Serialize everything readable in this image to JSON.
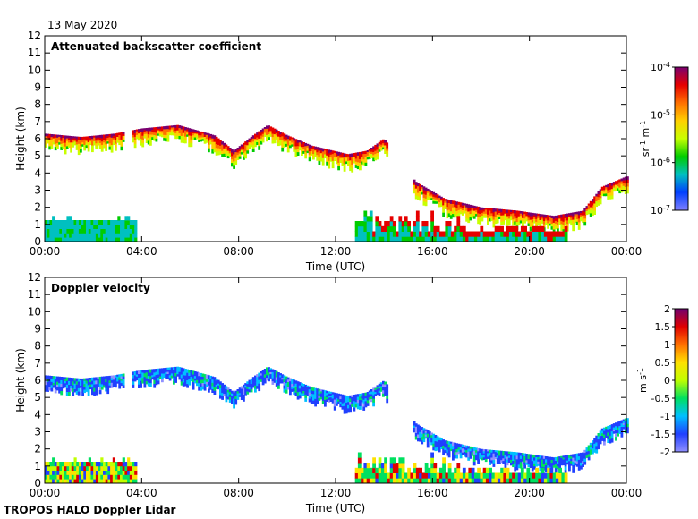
{
  "date": "13 May 2020",
  "footer": "TROPOS HALO Doppler Lidar",
  "colors": {
    "axis": "#000000",
    "background": "#ffffff",
    "rainbow": [
      "#ffffff",
      "#8080ff",
      "#0040ff",
      "#00c0c0",
      "#00cc00",
      "#c8ff00",
      "#ffd000",
      "#ff7000",
      "#e60000",
      "#7a0070"
    ],
    "velocity": [
      "#ffffff",
      "#9090ff",
      "#2040ff",
      "#00c0ff",
      "#00e060",
      "#c0ff00",
      "#ffe000",
      "#ff7000",
      "#e00000",
      "#700070"
    ]
  },
  "chart_data": [
    {
      "type": "heatmap",
      "title": "Attenuated backscatter coefficient",
      "xlabel": "Time (UTC)",
      "ylabel": "Height (km)",
      "xlim": [
        0,
        24
      ],
      "ylim": [
        0,
        12
      ],
      "x_tick_labels": [
        "00:00",
        "04:00",
        "08:00",
        "12:00",
        "16:00",
        "20:00",
        "00:00"
      ],
      "y_tick_labels": [
        "0",
        "1",
        "2",
        "3",
        "4",
        "5",
        "6",
        "7",
        "8",
        "9",
        "10",
        "11",
        "12"
      ],
      "colorbar": {
        "unit_base": "sr",
        "unit_exp1": "-1",
        "unit_mid": " m",
        "unit_exp2": "-1",
        "scale": "log",
        "range": [
          1e-07,
          0.0001
        ],
        "tick_base": "10",
        "tick_exps": [
          "-4",
          "-5",
          "-6",
          "-7"
        ]
      },
      "cloud_top_km": [
        {
          "t": 0.0,
          "h": 6.3
        },
        {
          "t": 1.5,
          "h": 6.1
        },
        {
          "t": 2.9,
          "h": 6.3
        },
        {
          "t": 4.0,
          "h": 6.6
        },
        {
          "t": 5.5,
          "h": 6.8
        },
        {
          "t": 7.0,
          "h": 6.2
        },
        {
          "t": 7.8,
          "h": 5.3
        },
        {
          "t": 8.6,
          "h": 6.2
        },
        {
          "t": 9.2,
          "h": 6.8
        },
        {
          "t": 10.0,
          "h": 6.2
        },
        {
          "t": 11.0,
          "h": 5.6
        },
        {
          "t": 12.5,
          "h": 5.1
        },
        {
          "t": 13.3,
          "h": 5.3
        },
        {
          "t": 14.0,
          "h": 6.0
        },
        {
          "t": 15.3,
          "h": 3.5
        },
        {
          "t": 16.5,
          "h": 2.5
        },
        {
          "t": 18.0,
          "h": 2.0
        },
        {
          "t": 19.5,
          "h": 1.8
        },
        {
          "t": 21.0,
          "h": 1.5
        },
        {
          "t": 22.2,
          "h": 1.8
        },
        {
          "t": 23.0,
          "h": 3.2
        },
        {
          "t": 24.0,
          "h": 3.8
        }
      ]
    },
    {
      "type": "heatmap",
      "title": "Doppler velocity",
      "xlabel": "Time (UTC)",
      "ylabel": "Height (km)",
      "xlim": [
        0,
        24
      ],
      "ylim": [
        0,
        12
      ],
      "x_tick_labels": [
        "00:00",
        "04:00",
        "08:00",
        "12:00",
        "16:00",
        "20:00",
        "00:00"
      ],
      "y_tick_labels": [
        "0",
        "1",
        "2",
        "3",
        "4",
        "5",
        "6",
        "7",
        "8",
        "9",
        "10",
        "11",
        "12"
      ],
      "colorbar": {
        "unit_base": "m s",
        "unit_exp1": "-1",
        "scale": "linear",
        "range": [
          -2,
          2
        ],
        "tick_labels": [
          "2",
          "1.5",
          "1",
          "0.5",
          "0",
          "-0.5",
          "-1",
          "-1.5",
          "-2"
        ]
      },
      "cloud_top_km": [
        {
          "t": 0.0,
          "h": 6.3
        },
        {
          "t": 1.5,
          "h": 6.1
        },
        {
          "t": 2.9,
          "h": 6.3
        },
        {
          "t": 4.0,
          "h": 6.6
        },
        {
          "t": 5.5,
          "h": 6.8
        },
        {
          "t": 7.0,
          "h": 6.2
        },
        {
          "t": 7.8,
          "h": 5.3
        },
        {
          "t": 8.6,
          "h": 6.2
        },
        {
          "t": 9.2,
          "h": 6.8
        },
        {
          "t": 10.0,
          "h": 6.2
        },
        {
          "t": 11.0,
          "h": 5.6
        },
        {
          "t": 12.5,
          "h": 5.1
        },
        {
          "t": 13.3,
          "h": 5.3
        },
        {
          "t": 14.0,
          "h": 6.0
        },
        {
          "t": 15.3,
          "h": 3.5
        },
        {
          "t": 16.5,
          "h": 2.5
        },
        {
          "t": 18.0,
          "h": 2.0
        },
        {
          "t": 19.5,
          "h": 1.8
        },
        {
          "t": 21.0,
          "h": 1.5
        },
        {
          "t": 22.2,
          "h": 1.8
        },
        {
          "t": 23.0,
          "h": 3.2
        },
        {
          "t": 24.0,
          "h": 3.8
        }
      ]
    }
  ]
}
